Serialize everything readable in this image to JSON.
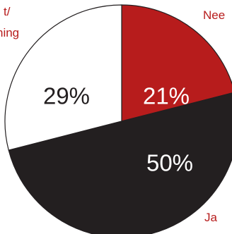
{
  "chart_data": {
    "type": "pie",
    "slices": [
      {
        "label": "Nee",
        "value": 21,
        "display": "21%",
        "color": "#b71c1c",
        "text_color": "#ffffff"
      },
      {
        "label": "Ja",
        "value": 50,
        "display": "50%",
        "color": "#231f20",
        "text_color": "#ffffff"
      },
      {
        "label": "Weet niet/ geen mening",
        "label_visible": "t/ ning",
        "value": 29,
        "display": "29%",
        "color": "#ffffff",
        "text_color": "#231f20"
      }
    ],
    "start_angle": "12 o'clock",
    "direction": "clockwise",
    "legend_color": "#b71c1c",
    "legend_placement": "around"
  }
}
